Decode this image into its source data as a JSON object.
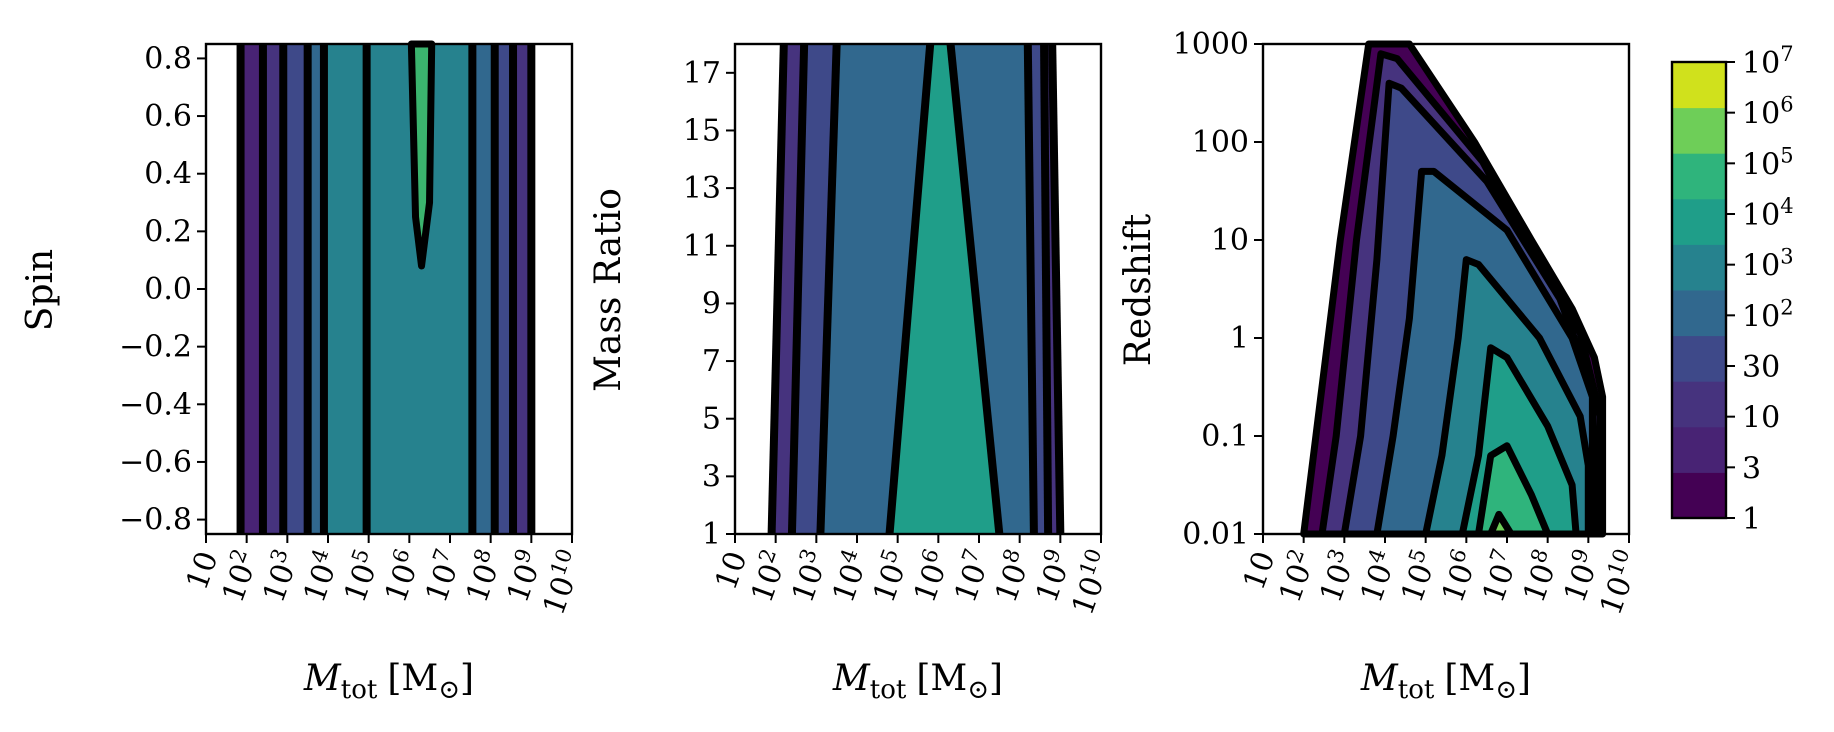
{
  "chart_data": [
    {
      "type": "contourf",
      "panel": "spin",
      "xlabel": "M_tot [M_sun]",
      "ylabel": "Spin",
      "xscale": "log",
      "xlim_log10": [
        1,
        10
      ],
      "x_ticks": [
        {
          "base": "10",
          "exp": ""
        },
        {
          "base": "10",
          "exp": "2"
        },
        {
          "base": "10",
          "exp": "3"
        },
        {
          "base": "10",
          "exp": "4"
        },
        {
          "base": "10",
          "exp": "5"
        },
        {
          "base": "10",
          "exp": "6"
        },
        {
          "base": "10",
          "exp": "7"
        },
        {
          "base": "10",
          "exp": "8"
        },
        {
          "base": "10",
          "exp": "9"
        },
        {
          "base": "10",
          "exp": "10"
        }
      ],
      "ylim": [
        -0.85,
        0.85
      ],
      "y_ticks": [
        "0.8",
        "0.6",
        "0.4",
        "0.2",
        "0.0",
        "−0.2",
        "−0.4",
        "−0.6",
        "−0.8"
      ],
      "y_tick_values": [
        0.8,
        0.6,
        0.4,
        0.2,
        0.0,
        -0.2,
        -0.4,
        -0.6,
        -0.8
      ],
      "contour_log10_mtot": [
        1.85,
        2.4,
        2.9,
        3.5,
        3.9,
        4.95,
        7.55,
        8.1,
        8.55,
        9.0
      ],
      "contour_levels_index": [
        0,
        1,
        2,
        3,
        4,
        5,
        4,
        3,
        2,
        1
      ],
      "note_feature": {
        "level": 6,
        "log10_mtot_range": [
          6.05,
          6.55
        ],
        "spin_min": 0.08
      }
    },
    {
      "type": "contourf",
      "panel": "mass_ratio",
      "xlabel": "M_tot [M_sun]",
      "ylabel": "Mass Ratio",
      "xscale": "log",
      "xlim_log10": [
        1,
        10
      ],
      "ylim": [
        1,
        18
      ],
      "y_ticks": [
        "17",
        "15",
        "13",
        "11",
        "9",
        "7",
        "5",
        "3",
        "1"
      ],
      "y_tick_values": [
        17,
        15,
        13,
        11,
        9,
        7,
        5,
        3,
        1
      ],
      "contours": [
        {
          "level": 1,
          "left": [
            [
              1.9,
              1
            ],
            [
              2.2,
              18
            ]
          ],
          "right": [
            [
              9.0,
              1
            ],
            [
              8.8,
              18
            ]
          ]
        },
        {
          "level": 2,
          "left": [
            [
              2.4,
              1
            ],
            [
              2.7,
              18
            ]
          ],
          "right": [
            [
              8.7,
              1
            ],
            [
              8.6,
              18
            ]
          ]
        },
        {
          "level": 3,
          "left": [
            [
              3.1,
              1
            ],
            [
              3.5,
              18
            ]
          ],
          "right": [
            [
              8.35,
              1
            ],
            [
              8.2,
              18
            ]
          ]
        },
        {
          "level": 4,
          "left": [
            [
              4.8,
              1
            ],
            [
              5.8,
              18
            ]
          ],
          "right": [
            [
              7.5,
              1
            ],
            [
              6.3,
              18
            ]
          ]
        }
      ]
    },
    {
      "type": "contourf",
      "panel": "redshift",
      "xlabel": "M_tot [M_sun]",
      "ylabel": "Redshift",
      "xscale": "log",
      "yscale": "log",
      "xlim_log10": [
        1,
        10
      ],
      "ylim_log10": [
        -2,
        3
      ],
      "y_ticks": [
        "1000",
        "100",
        "10",
        "1",
        "0.1",
        "0.01"
      ],
      "y_tick_values": [
        1000,
        100,
        10,
        1,
        0.1,
        0.01
      ],
      "contours": [
        {
          "level": 1,
          "points": [
            [
              2.0,
              -2
            ],
            [
              2.3,
              -1
            ],
            [
              2.9,
              1
            ],
            [
              3.6,
              3
            ],
            [
              4.6,
              3
            ],
            [
              6.2,
              2
            ],
            [
              7.6,
              1
            ],
            [
              8.6,
              0.3
            ],
            [
              9.15,
              -0.2
            ],
            [
              9.35,
              -0.6
            ],
            [
              9.35,
              -2
            ]
          ]
        },
        {
          "level": 2,
          "points": [
            [
              2.45,
              -2
            ],
            [
              2.8,
              -1
            ],
            [
              3.3,
              1
            ],
            [
              3.9,
              2.9
            ],
            [
              4.3,
              2.85
            ],
            [
              6.4,
              1.8
            ],
            [
              7.7,
              0.8
            ],
            [
              8.8,
              0.05
            ],
            [
              9.3,
              -0.8
            ],
            [
              9.3,
              -2
            ]
          ]
        },
        {
          "level": 3,
          "points": [
            [
              3.0,
              -2
            ],
            [
              3.4,
              -1
            ],
            [
              3.8,
              0.8
            ],
            [
              4.1,
              2.6
            ],
            [
              4.4,
              2.55
            ],
            [
              6.5,
              1.6
            ],
            [
              8.3,
              0.4
            ],
            [
              9.1,
              -0.5
            ],
            [
              9.2,
              -2
            ]
          ]
        },
        {
          "level": 4,
          "points": [
            [
              3.8,
              -2
            ],
            [
              4.2,
              -1
            ],
            [
              4.6,
              0.2
            ],
            [
              4.9,
              1.7
            ],
            [
              5.2,
              1.7
            ],
            [
              7.0,
              1.1
            ],
            [
              8.6,
              0.0
            ],
            [
              9.1,
              -0.6
            ],
            [
              9.1,
              -2
            ]
          ]
        },
        {
          "level": 5,
          "points": [
            [
              5.0,
              -2
            ],
            [
              5.4,
              -1.2
            ],
            [
              5.8,
              0.0
            ],
            [
              6.0,
              0.8
            ],
            [
              6.3,
              0.75
            ],
            [
              7.8,
              0.0
            ],
            [
              8.8,
              -0.8
            ],
            [
              9.0,
              -1.3
            ],
            [
              9.0,
              -2
            ]
          ]
        },
        {
          "level": 6,
          "points": [
            [
              5.9,
              -2
            ],
            [
              6.3,
              -1.2
            ],
            [
              6.6,
              -0.1
            ],
            [
              7.0,
              -0.2
            ],
            [
              8.0,
              -0.9
            ],
            [
              8.6,
              -1.5
            ],
            [
              8.7,
              -2
            ]
          ]
        },
        {
          "level": 7,
          "points": [
            [
              6.3,
              -2
            ],
            [
              6.6,
              -1.2
            ],
            [
              7.0,
              -1.1
            ],
            [
              7.6,
              -1.6
            ],
            [
              8.0,
              -2
            ]
          ]
        },
        {
          "level": 8,
          "points": [
            [
              6.6,
              -2
            ],
            [
              6.8,
              -1.8
            ],
            [
              7.1,
              -2
            ]
          ]
        }
      ]
    }
  ],
  "colorbar": {
    "levels": [
      {
        "label": "1",
        "color": "#440154"
      },
      {
        "label": "3",
        "color": "#472e7c"
      },
      {
        "label": "10",
        "color": "#3f4a8a"
      },
      {
        "label": "30",
        "color": "#3b528b"
      },
      {
        "label": "10^2",
        "color": "#2c728e"
      },
      {
        "label": "10^3",
        "color": "#21918c"
      },
      {
        "label": "10^4",
        "color": "#27ad81"
      },
      {
        "label": "10^5",
        "color": "#5ec962"
      },
      {
        "label": "10^6",
        "color": "#7ad151"
      },
      {
        "label": "10^7",
        "color": "#d0e11c"
      }
    ],
    "band_colors": [
      "#440154",
      "#482374",
      "#46337e",
      "#3e4989",
      "#31688e",
      "#26828e",
      "#1f9e89",
      "#2fb47c",
      "#6ece58",
      "#d0e11c"
    ],
    "tick_labels": [
      {
        "base": "1",
        "exp": ""
      },
      {
        "base": "3",
        "exp": ""
      },
      {
        "base": "10",
        "exp": ""
      },
      {
        "base": "30",
        "exp": ""
      },
      {
        "base": "10",
        "exp": "2"
      },
      {
        "base": "10",
        "exp": "3"
      },
      {
        "base": "10",
        "exp": "4"
      },
      {
        "base": "10",
        "exp": "5"
      },
      {
        "base": "10",
        "exp": "6"
      },
      {
        "base": "10",
        "exp": "7"
      }
    ]
  },
  "axis_labels": {
    "y1": "Spin",
    "y2": "Mass Ratio",
    "y3": "Redshift",
    "x_M": "M",
    "x_sub": "tot",
    "x_unit_open": "[M",
    "x_unit_sun": "⊙",
    "x_unit_close": "]"
  }
}
